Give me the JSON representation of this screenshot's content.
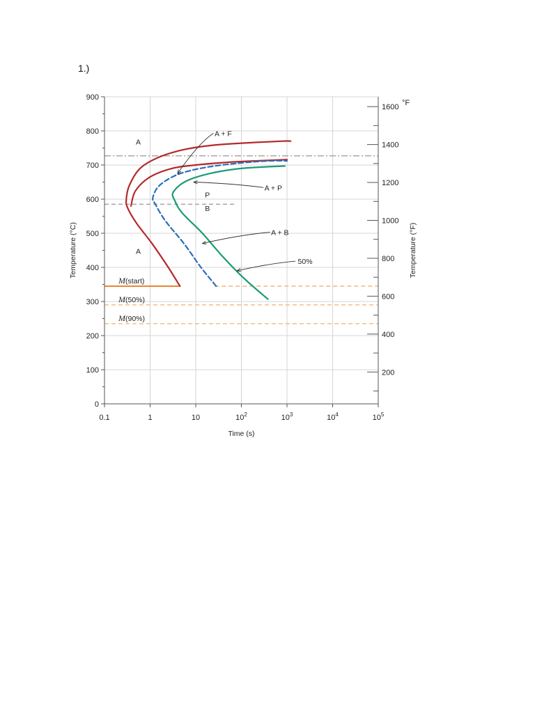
{
  "page": {
    "problem_number": "1.)"
  },
  "chart_data": {
    "type": "line",
    "xlabel": "Time (s)",
    "ylabel": "Temperature (°C)",
    "y2label": "Temperature (°F)",
    "x_scale": "log",
    "xlim": [
      0.1,
      100000
    ],
    "ylim": [
      0,
      900
    ],
    "y2lim": [
      32,
      1652
    ],
    "grid": true,
    "x_ticks": [
      {
        "value": 0.1,
        "label": "0.1"
      },
      {
        "value": 1,
        "label": "1"
      },
      {
        "value": 10,
        "label": "10"
      },
      {
        "value": 100,
        "base": "10",
        "exp": "2"
      },
      {
        "value": 1000,
        "base": "10",
        "exp": "3"
      },
      {
        "value": 10000,
        "base": "10",
        "exp": "4"
      },
      {
        "value": 100000,
        "base": "10",
        "exp": "5"
      }
    ],
    "y_ticks": [
      0,
      100,
      200,
      300,
      400,
      500,
      600,
      700,
      800,
      900
    ],
    "y_tick_labels": [
      "0",
      "100",
      "200",
      "300",
      "400",
      "500",
      "600",
      "700",
      "800",
      "900"
    ],
    "y2_ticks": [
      200,
      400,
      600,
      800,
      1000,
      1200,
      1400,
      1600
    ],
    "y2_tick_labels": [
      "200",
      "400",
      "600",
      "800",
      "1000",
      "1200",
      "1400",
      "1600"
    ],
    "y2_top_marker": "°F",
    "reference_lines": [
      {
        "name": "eutectoid",
        "y": 727,
        "style": "dash-dot",
        "color": "#a0a0a0"
      },
      {
        "name": "P/B boundary",
        "y": 585,
        "x_range": [
          0.1,
          80
        ],
        "style": "dashed",
        "color": "#a0a0a0"
      }
    ],
    "martensite_lines": [
      {
        "label_prefix": "M",
        "label_suffix": "(start)",
        "y": 345,
        "solid_x_range": [
          0.1,
          4.5
        ]
      },
      {
        "label_prefix": "M",
        "label_suffix": "(50%)",
        "y": 290,
        "solid_x_range": null
      },
      {
        "label_prefix": "M",
        "label_suffix": "(90%)",
        "y": 235,
        "solid_x_range": null
      }
    ],
    "series": [
      {
        "color": "#b5282b",
        "style": "solid",
        "points": [
          [
            4.5,
            345
          ],
          [
            2.5,
            400
          ],
          [
            1.1,
            470
          ],
          [
            0.5,
            530
          ],
          [
            0.32,
            575
          ],
          [
            0.3,
            600
          ],
          [
            0.35,
            640
          ],
          [
            0.6,
            690
          ],
          [
            1.5,
            722
          ],
          [
            5,
            744
          ],
          [
            20,
            757
          ],
          [
            100,
            764
          ],
          [
            800,
            770
          ],
          [
            1200,
            770
          ]
        ]
      },
      {
        "color": "#b5282b",
        "style": "solid",
        "points": [
          [
            0.38,
            580
          ],
          [
            0.48,
            625
          ],
          [
            1.0,
            665
          ],
          [
            3,
            690
          ],
          [
            10,
            700
          ],
          [
            50,
            708
          ],
          [
            300,
            713
          ],
          [
            1000,
            716
          ]
        ]
      },
      {
        "color": "#2a6fb8",
        "style": "dashed",
        "points": [
          [
            28,
            345
          ],
          [
            13,
            400
          ],
          [
            5.5,
            470
          ],
          [
            2.2,
            535
          ],
          [
            1.3,
            585
          ],
          [
            1.15,
            605
          ],
          [
            1.6,
            640
          ],
          [
            4,
            672
          ],
          [
            15,
            692
          ],
          [
            80,
            705
          ],
          [
            400,
            712
          ],
          [
            1000,
            712
          ]
        ]
      },
      {
        "color": "#1a9a75",
        "style": "solid",
        "points": [
          [
            380,
            307
          ],
          [
            120,
            365
          ],
          [
            40,
            430
          ],
          [
            14,
            500
          ],
          [
            5,
            560
          ],
          [
            3.5,
            595
          ],
          [
            3.2,
            620
          ],
          [
            6,
            652
          ],
          [
            20,
            675
          ],
          [
            100,
            690
          ],
          [
            400,
            695
          ],
          [
            900,
            697
          ]
        ]
      }
    ],
    "annotations": [
      {
        "text": "A",
        "x": 0.55,
        "y": 760
      },
      {
        "text": "A + F",
        "x": 40,
        "y": 785,
        "arrow_to": [
          4,
          675
        ]
      },
      {
        "text": "A + P",
        "x": 500,
        "y": 626,
        "arrow_to": [
          9,
          650
        ]
      },
      {
        "text": "P",
        "x": 18,
        "y": 605
      },
      {
        "text": "B",
        "x": 18,
        "y": 565
      },
      {
        "text": "A + B",
        "x": 700,
        "y": 495,
        "arrow_to": [
          14,
          470
        ]
      },
      {
        "text": "A",
        "x": 0.55,
        "y": 440
      },
      {
        "text": "50%",
        "x": 2500,
        "y": 410,
        "arrow_to": [
          80,
          390
        ]
      }
    ]
  }
}
